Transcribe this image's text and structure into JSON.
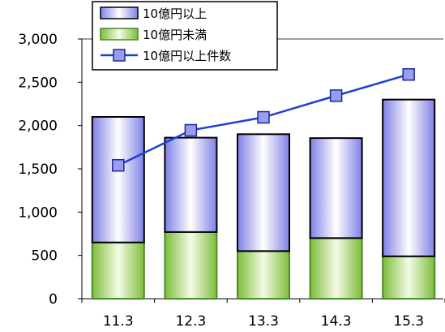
{
  "chart_data": {
    "type": "bar",
    "stacked": true,
    "categories": [
      "11.3",
      "12.3",
      "13.3",
      "14.3",
      "15.3"
    ],
    "series": [
      {
        "name": "10億円未満",
        "type": "bar",
        "values": [
          650,
          770,
          550,
          700,
          490
        ]
      },
      {
        "name": "10億円以上",
        "type": "bar",
        "values": [
          1450,
          1090,
          1350,
          1155,
          1810
        ]
      },
      {
        "name": "10億円以上件数",
        "type": "line",
        "values": [
          1540,
          1945,
          2095,
          2345,
          2590
        ]
      }
    ],
    "y_tick_labels": [
      "0",
      "500",
      "1,000",
      "1,500",
      "2,000",
      "2,500",
      "3,000"
    ],
    "ylim": [
      0,
      3000
    ],
    "grid": false,
    "legend_position": "top-left",
    "legend_order": [
      "10億円以上",
      "10億円未満",
      "10億円以上件数"
    ],
    "colors": {
      "over_bar_edge": "#3f3fc0",
      "over_bar_fill": "#c8c8f8",
      "under_bar_edge": "#4a8a2a",
      "under_bar_fill": "#b6dc7a",
      "line": "#1f3fd6",
      "marker_fill": "#9a9cf0"
    }
  }
}
